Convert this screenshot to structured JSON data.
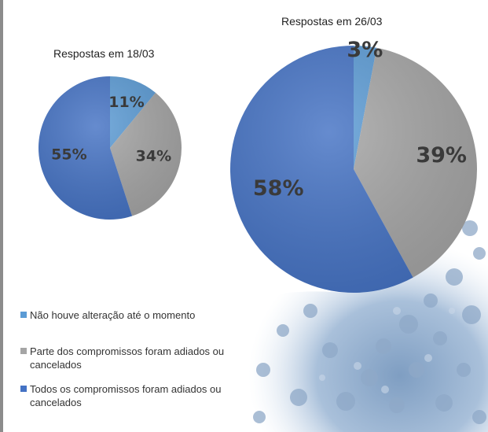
{
  "chart_data": [
    {
      "type": "pie",
      "title": "Respostas em 18/03",
      "categories": [
        "Não houve alteração até o momento",
        "Parte dos compromissos foram adiados ou cancelados",
        "Todos os compromissos foram adiados ou cancelados"
      ],
      "values": [
        11,
        34,
        55
      ],
      "labels": [
        "11%",
        "34%",
        "55%"
      ],
      "colors": [
        "#5b9bd5",
        "#a5a5a5",
        "#4472c4"
      ]
    },
    {
      "type": "pie",
      "title": "Respostas em 26/03",
      "categories": [
        "Não houve alteração até o momento",
        "Parte dos compromissos foram adiados ou cancelados",
        "Todos os compromissos foram adiados ou cancelados"
      ],
      "values": [
        3,
        39,
        58
      ],
      "labels": [
        "3%",
        "39%",
        "58%"
      ],
      "colors": [
        "#5b9bd5",
        "#a5a5a5",
        "#4472c4"
      ]
    }
  ],
  "legend": [
    {
      "label": "Não houve alteração até o momento",
      "color": "#5b9bd5"
    },
    {
      "label": "Parte dos compromissos foram adiados ou cancelados",
      "color": "#a5a5a5"
    },
    {
      "label": "Todos os compromissos foram adiados ou cancelados",
      "color": "#4472c4"
    }
  ],
  "label_color": "#3a3a3a"
}
